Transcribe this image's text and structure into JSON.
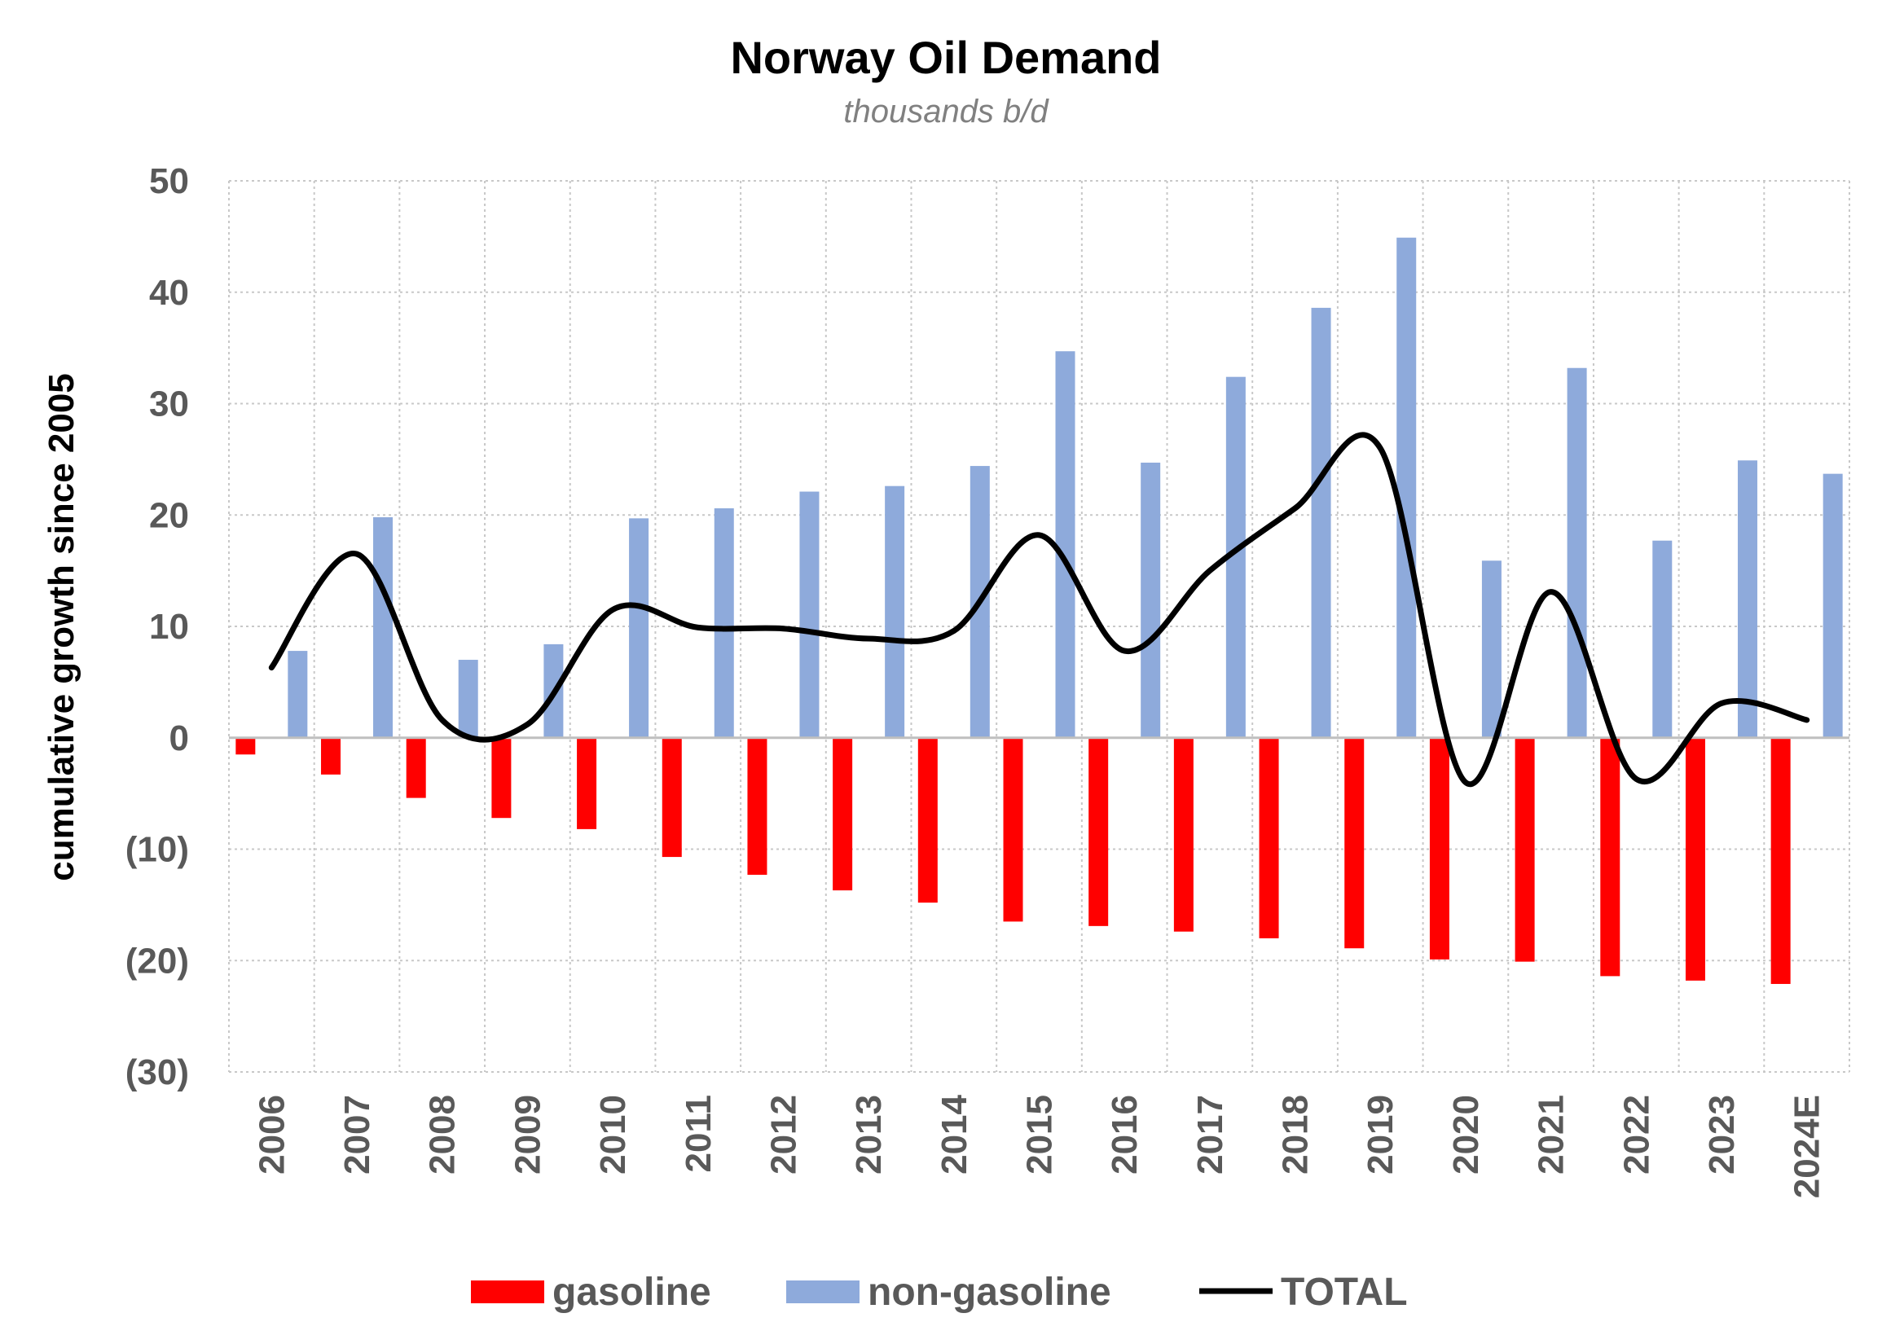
{
  "chart_data": {
    "type": "bar",
    "title": "Norway Oil Demand",
    "subtitle": "thousands b/d",
    "xlabel": "",
    "ylabel": "cumulative growth since 2005",
    "ylim": [
      -30,
      50
    ],
    "yticks": [
      50,
      40,
      30,
      20,
      10,
      0,
      -10,
      -20,
      -30
    ],
    "ytick_labels": [
      "50",
      "40",
      "30",
      "20",
      "10",
      "0",
      "(10)",
      "(20)",
      "(30)"
    ],
    "categories": [
      "2006",
      "2007",
      "2008",
      "2009",
      "2010",
      "2011",
      "2012",
      "2013",
      "2014",
      "2015",
      "2016",
      "2017",
      "2018",
      "2019",
      "2020",
      "2021",
      "2022",
      "2023",
      "2024E"
    ],
    "series": [
      {
        "name": "gasoline",
        "type": "bar",
        "color": "#ff0000",
        "values": [
          -1.5,
          -3.3,
          -5.4,
          -7.2,
          -8.2,
          -10.7,
          -12.3,
          -13.7,
          -14.8,
          -16.5,
          -16.9,
          -17.4,
          -18.0,
          -18.9,
          -19.9,
          -20.1,
          -21.4,
          -21.8,
          -22.1
        ]
      },
      {
        "name": "non-gasoline",
        "type": "bar",
        "color": "#8eaadb",
        "values": [
          7.8,
          19.8,
          7.0,
          8.4,
          19.7,
          20.6,
          22.1,
          22.6,
          24.4,
          34.7,
          24.7,
          32.4,
          38.6,
          44.9,
          15.9,
          33.2,
          17.7,
          24.9,
          23.7
        ]
      },
      {
        "name": "TOTAL",
        "type": "line",
        "color": "#000000",
        "values": [
          6.3,
          16.5,
          1.6,
          1.2,
          11.5,
          9.9,
          9.8,
          8.9,
          9.6,
          18.2,
          7.8,
          15.0,
          20.6,
          26.0,
          -4.0,
          13.1,
          -3.7,
          3.1,
          1.6
        ]
      }
    ],
    "grid": true,
    "legend": {
      "position": "bottom-center",
      "entries": [
        "gasoline",
        "non-gasoline",
        "TOTAL"
      ]
    }
  }
}
